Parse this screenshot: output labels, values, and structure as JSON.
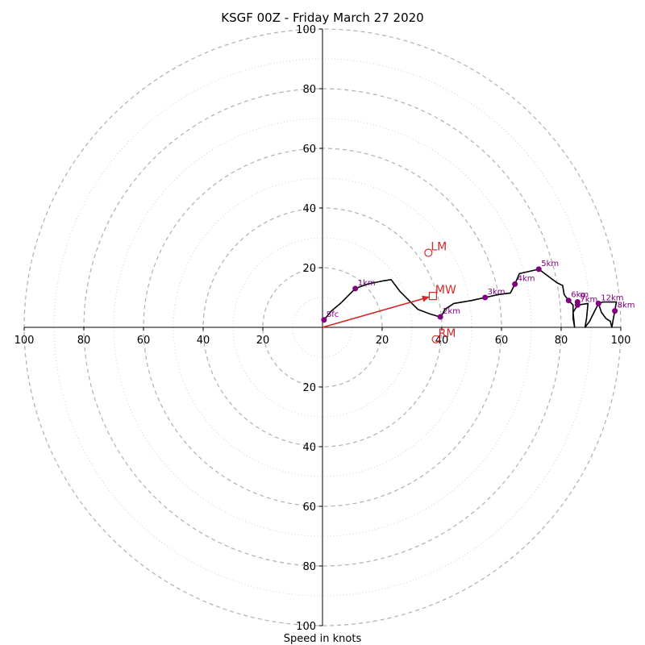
{
  "chart_data": {
    "type": "hodograph",
    "title": "KSGF 00Z - Friday March 27 2020",
    "xlabel": "Speed in knots",
    "ylabel": "",
    "xlim": [
      -100,
      100
    ],
    "ylim": [
      -100,
      100
    ],
    "ring_labels": [
      "100",
      "80",
      "60",
      "40",
      "20",
      "20",
      "40",
      "60",
      "80",
      "100"
    ],
    "y_ring_labels": [
      "100",
      "80",
      "60",
      "40",
      "20",
      "20",
      "40",
      "60",
      "80",
      "100"
    ],
    "major_rings": [
      20,
      40,
      60,
      80,
      100
    ],
    "minor_rings": [
      10,
      30,
      50,
      70,
      90
    ],
    "grid": true,
    "colors": {
      "trace": "#000000",
      "height_points": "#800080",
      "motion": "#d62728",
      "major_grid": "#b0b0b0",
      "minor_grid": "#d0d0d0"
    },
    "trace": [
      {
        "u": 0.5,
        "v": 2.5
      },
      {
        "u": 3,
        "v": 5.5
      },
      {
        "u": 6,
        "v": 8
      },
      {
        "u": 9,
        "v": 11
      },
      {
        "u": 11,
        "v": 13
      },
      {
        "u": 15,
        "v": 14.5
      },
      {
        "u": 20,
        "v": 15.5
      },
      {
        "u": 23,
        "v": 16
      },
      {
        "u": 26,
        "v": 12
      },
      {
        "u": 30,
        "v": 8
      },
      {
        "u": 32,
        "v": 6
      },
      {
        "u": 36,
        "v": 4.5
      },
      {
        "u": 39.5,
        "v": 3.5
      },
      {
        "u": 40,
        "v": 4
      },
      {
        "u": 41,
        "v": 6
      },
      {
        "u": 44,
        "v": 8
      },
      {
        "u": 50,
        "v": 9
      },
      {
        "u": 54.5,
        "v": 10
      },
      {
        "u": 59,
        "v": 11
      },
      {
        "u": 63,
        "v": 11.5
      },
      {
        "u": 64.5,
        "v": 14.5
      },
      {
        "u": 66,
        "v": 18
      },
      {
        "u": 72.5,
        "v": 19.5
      },
      {
        "u": 78.5,
        "v": 15
      },
      {
        "u": 80.5,
        "v": 14
      },
      {
        "u": 81,
        "v": 11
      },
      {
        "u": 82.5,
        "v": 9
      },
      {
        "u": 84,
        "v": 7.5
      },
      {
        "u": 84,
        "v": 3
      },
      {
        "u": 84.5,
        "v": 0
      },
      {
        "u": 84,
        "v": 5
      },
      {
        "u": 85.5,
        "v": 7.5
      },
      {
        "u": 89,
        "v": 8
      },
      {
        "u": 88.5,
        "v": 3
      },
      {
        "u": 88,
        "v": 0
      },
      {
        "u": 89.5,
        "v": 2
      },
      {
        "u": 91,
        "v": 5
      },
      {
        "u": 92.5,
        "v": 8
      },
      {
        "u": 93.5,
        "v": 5
      },
      {
        "u": 95,
        "v": 3
      },
      {
        "u": 96.5,
        "v": 2
      },
      {
        "u": 97,
        "v": 0
      },
      {
        "u": 97.5,
        "v": 3
      },
      {
        "u": 98,
        "v": 5.5
      },
      {
        "u": 98.5,
        "v": 8.5
      },
      {
        "u": 94,
        "v": 8.5
      },
      {
        "u": 92.5,
        "v": 8
      }
    ],
    "height_points": [
      {
        "label": "Sfc",
        "u": 0.5,
        "v": 2.5
      },
      {
        "label": "1km",
        "u": 11,
        "v": 13
      },
      {
        "label": "2km",
        "u": 39.5,
        "v": 3.5
      },
      {
        "label": "3km",
        "u": 54.5,
        "v": 10
      },
      {
        "label": "4km",
        "u": 64.5,
        "v": 14.5
      },
      {
        "label": "5km",
        "u": 72.5,
        "v": 19.5
      },
      {
        "label": "6km",
        "u": 82.5,
        "v": 9
      },
      {
        "label": "7km",
        "u": 85.5,
        "v": 7.5
      },
      {
        "label": "9",
        "u": 85.5,
        "v": 8.5
      },
      {
        "label": "12km",
        "u": 92.5,
        "v": 8
      },
      {
        "label": "8km",
        "u": 98,
        "v": 5.5
      }
    ],
    "storm_motion": {
      "mean_wind": {
        "label": "MW",
        "u": 37,
        "v": 10.5
      },
      "left_mover": {
        "label": "LM",
        "u": 35.5,
        "v": 25
      },
      "right_mover": {
        "label": "RM",
        "u": 38,
        "v": -4
      }
    }
  }
}
